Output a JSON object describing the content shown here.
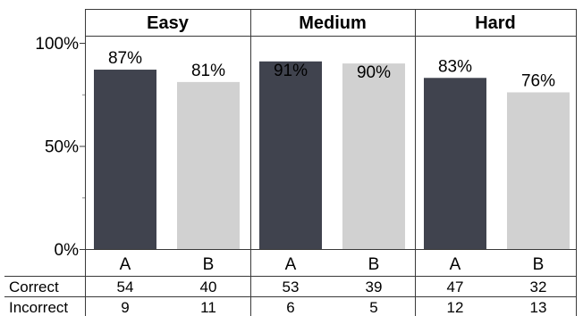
{
  "chart_data": {
    "type": "bar",
    "groups": [
      "Easy",
      "Medium",
      "Hard"
    ],
    "categories": [
      "A",
      "B"
    ],
    "values": [
      [
        87,
        81
      ],
      [
        91,
        90
      ],
      [
        83,
        76
      ]
    ],
    "value_labels": [
      [
        "87%",
        "81%"
      ],
      [
        "91%",
        "90%"
      ],
      [
        "83%",
        "76%"
      ]
    ],
    "ylim": [
      0,
      100
    ],
    "yticks": [
      {
        "value": 0,
        "label": "0%"
      },
      {
        "value": 50,
        "label": "50%"
      },
      {
        "value": 100,
        "label": "100%"
      }
    ],
    "bar_colors": {
      "A": "#40434e",
      "B": "#d1d1d1"
    },
    "label_colors": {
      "A": "#000000",
      "B": "#000000",
      "A_inside": "#000000"
    },
    "table": {
      "rows": [
        {
          "name": "Correct",
          "values": [
            [
              54,
              40
            ],
            [
              53,
              39
            ],
            [
              47,
              32
            ]
          ]
        },
        {
          "name": "Incorrect",
          "values": [
            [
              9,
              11
            ],
            [
              6,
              5
            ],
            [
              12,
              13
            ]
          ]
        }
      ]
    }
  }
}
